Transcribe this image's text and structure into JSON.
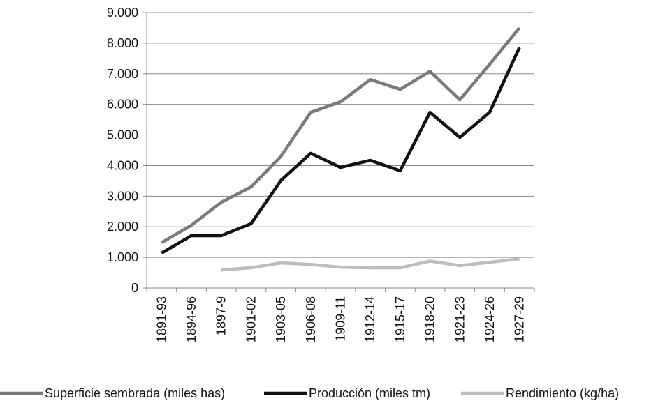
{
  "chart_data": {
    "type": "line",
    "categories": [
      "1891-93",
      "1894-96",
      "1897-9",
      "1901-02",
      "1903-05",
      "1906-08",
      "1909-11",
      "1912-14",
      "1915-17",
      "1918-20",
      "1921-23",
      "1924-26",
      "1927-29"
    ],
    "series": [
      {
        "name": "Superficie sembrada (miles has)",
        "color": "#7a7a7a",
        "values": [
          1480,
          2050,
          2800,
          3300,
          4300,
          5740,
          6080,
          6810,
          6490,
          7080,
          6150,
          7310,
          8500
        ]
      },
      {
        "name": "Producción (miles tm)",
        "color": "#111111",
        "values": [
          1140,
          1710,
          1710,
          2100,
          3510,
          4400,
          3940,
          4170,
          3830,
          5740,
          4920,
          5740,
          7860
        ]
      },
      {
        "name": "Rendimiento (kg/ha)",
        "color": "#bdbdbd",
        "values": [
          null,
          null,
          590,
          660,
          820,
          770,
          680,
          660,
          660,
          880,
          730,
          840,
          950
        ]
      }
    ],
    "ylim": [
      0,
      9000
    ],
    "yticks": [
      0,
      {
        "value": 1000,
        "label": "1.000"
      },
      {
        "value": 2000,
        "label": "2.000"
      },
      {
        "value": 3000,
        "label": "3.000"
      },
      {
        "value": 4000,
        "label": "4.000"
      },
      {
        "value": 5000,
        "label": "5.000"
      },
      {
        "value": 6000,
        "label": "6.000"
      },
      {
        "value": 7000,
        "label": "7.000"
      },
      {
        "value": 8000,
        "label": "8.000"
      },
      {
        "value": 9000,
        "label": "9.000"
      }
    ],
    "grid": true,
    "legend": "bottom"
  }
}
